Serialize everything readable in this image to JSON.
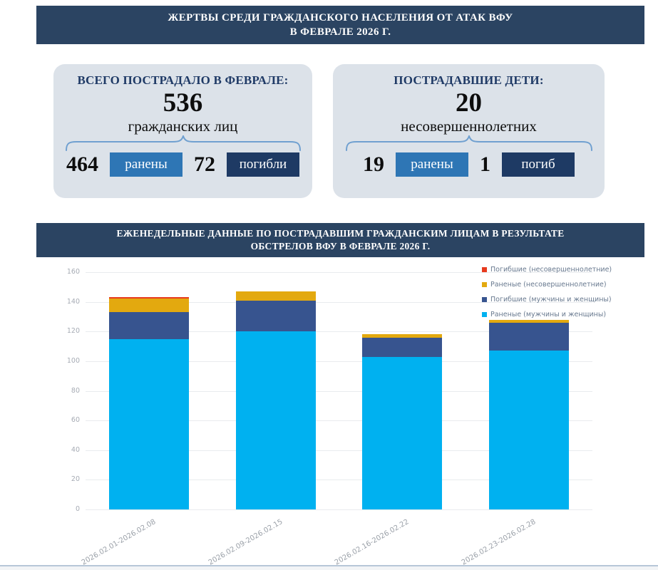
{
  "page": {
    "header1": {
      "line1": "ЖЕРТВЫ СРЕДИ ГРАЖДАНСКОГО НАСЕЛЕНИЯ ОТ АТАК ВФУ",
      "line2": "В ФЕВРАЛЕ 2026 Г."
    },
    "header2": {
      "line1": "ЕЖЕНЕДЕЛЬНЫЕ ДАННЫЕ ПО ПОСТРАДАВШИМ ГРАЖДАНСКИМ ЛИЦАМ В РЕЗУЛЬТАТЕ",
      "line2": "ОБСТРЕЛОВ ВФУ В ФЕВРАЛЕ 2026 Г."
    }
  },
  "cards": {
    "total": {
      "title": "ВСЕГО ПОСТРАДАЛО В ФЕВРАЛЕ:",
      "number": "536",
      "unit": "гражданских лиц",
      "wounded": {
        "value": "464",
        "label": "ранены"
      },
      "dead": {
        "value": "72",
        "label": "погибли"
      }
    },
    "children": {
      "title": "ПОСТРАДАВШИЕ ДЕТИ:",
      "number": "20",
      "unit": "несовершеннолетних",
      "wounded": {
        "value": "19",
        "label": "ранены"
      },
      "dead": {
        "value": "1",
        "label": "погиб"
      }
    }
  },
  "colors": {
    "banner_bg": "#2b4462",
    "card_bg": "#dce2e9",
    "card_title_text": "#1f3a66",
    "badge_wounded": "#2e76b5",
    "badge_dead": "#1e3a64",
    "brace": "#70a0d0",
    "gridline": "#e9ebee",
    "divider": "#b7c7d8"
  },
  "chart_data": {
    "type": "bar",
    "stacked": true,
    "title": "",
    "xlabel": "",
    "ylabel": "",
    "categories": [
      "2026.02.01-2026.02.08",
      "2026.02.09-2026.02.15",
      "2026.02.16-2026.02.22",
      "2026.02.23-2026.02.28"
    ],
    "series": [
      {
        "name": "Раненые (мужчины и женщины)",
        "color": "#00b1f0",
        "values": [
          115,
          120,
          103,
          107
        ]
      },
      {
        "name": "Погибшие (мужчины и женщины)",
        "color": "#37548f",
        "values": [
          18,
          21,
          13,
          19
        ]
      },
      {
        "name": "Раненые (несовершеннолетние)",
        "color": "#e3a90f",
        "values": [
          9,
          6,
          2,
          2
        ]
      },
      {
        "name": "Погибшие (несовершеннолетние)",
        "color": "#e73a1e",
        "values": [
          1,
          0,
          0,
          0
        ]
      }
    ],
    "totals": [
      143,
      147,
      118,
      128
    ],
    "ylim": [
      0,
      160
    ],
    "ytick_step": 20,
    "yticks": [
      0,
      20,
      40,
      60,
      80,
      100,
      120,
      140,
      160
    ],
    "grid": true,
    "legend_position": "top-right",
    "legend_order_note": "legend listed top-of-stack first (reverse of series order)"
  }
}
